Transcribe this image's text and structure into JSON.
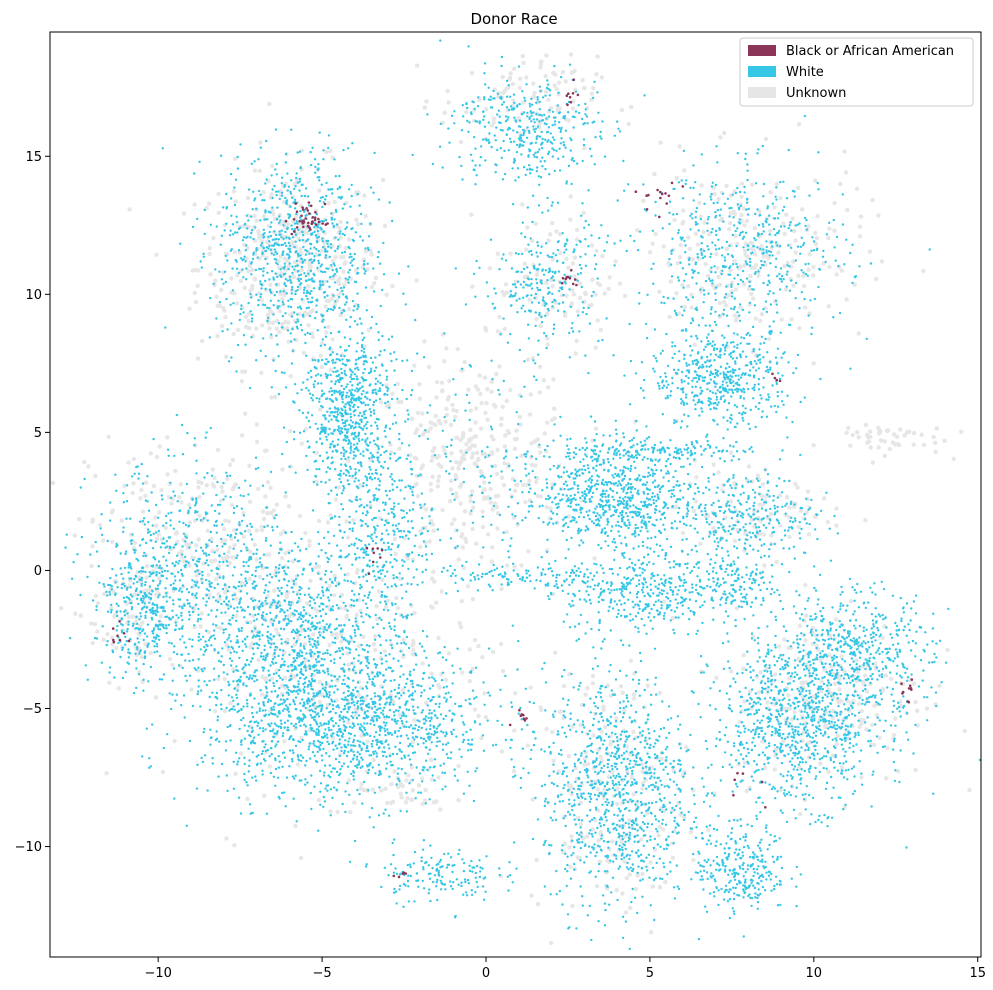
{
  "chart_data": {
    "type": "scatter",
    "title": "Donor Race",
    "xlabel": "",
    "ylabel": "",
    "xlim": [
      -13.3,
      15.1
    ],
    "ylim": [
      -14.0,
      19.5
    ],
    "xticks": [
      -10,
      -5,
      0,
      5,
      10,
      15
    ],
    "yticks": [
      -10,
      -5,
      0,
      5,
      10,
      15
    ],
    "xtick_labels": [
      "−10",
      "−5",
      "0",
      "5",
      "10",
      "15"
    ],
    "ytick_labels": [
      "−10",
      "−5",
      "0",
      "5",
      "10",
      "15"
    ],
    "grid": false,
    "legend_position": "top-right",
    "series": [
      {
        "name": "Unknown",
        "color": "#e6e6e6",
        "clusters": [
          {
            "center": [
              -6.0,
              11.0
            ],
            "sd": [
              1.4,
              1.8
            ],
            "n": 380
          },
          {
            "center": [
              -0.5,
              3.8
            ],
            "sd": [
              1.6,
              2.0
            ],
            "n": 320
          },
          {
            "center": [
              -8.5,
              1.0
            ],
            "sd": [
              1.8,
              2.0
            ],
            "n": 260
          },
          {
            "center": [
              -4.5,
              -3.5
            ],
            "sd": [
              2.5,
              2.2
            ],
            "n": 280
          },
          {
            "center": [
              8.0,
              11.5
            ],
            "sd": [
              1.8,
              1.6
            ],
            "n": 240
          },
          {
            "center": [
              1.0,
              17.0
            ],
            "sd": [
              1.2,
              0.8
            ],
            "n": 100
          },
          {
            "center": [
              2.0,
              10.5
            ],
            "sd": [
              1.0,
              1.3
            ],
            "n": 90
          },
          {
            "center": [
              10.5,
              -4.5
            ],
            "sd": [
              1.5,
              1.6
            ],
            "n": 220
          },
          {
            "center": [
              3.8,
              -8.0
            ],
            "sd": [
              1.2,
              2.3
            ],
            "n": 200
          },
          {
            "center": [
              8.2,
              2.2
            ],
            "sd": [
              1.2,
              0.9
            ],
            "n": 90
          },
          {
            "center": [
              12.0,
              4.8
            ],
            "sd": [
              1.0,
              0.3
            ],
            "n": 50
          },
          {
            "center": [
              -11.0,
              -1.5
            ],
            "sd": [
              0.6,
              1.2
            ],
            "n": 60
          },
          {
            "center": [
              -2.5,
              -8.0
            ],
            "sd": [
              0.7,
              0.4
            ],
            "n": 40
          }
        ]
      },
      {
        "name": "White",
        "color": "#36c6e6",
        "clusters": [
          {
            "center": [
              -4.2,
              -5.5
            ],
            "sd": [
              2.2,
              1.4
            ],
            "n": 1400
          },
          {
            "center": [
              -5.8,
              -2.2
            ],
            "sd": [
              1.6,
              1.6
            ],
            "n": 800
          },
          {
            "center": [
              -9.0,
              0.0
            ],
            "sd": [
              1.5,
              2.0
            ],
            "n": 600
          },
          {
            "center": [
              -10.5,
              -1.5
            ],
            "sd": [
              0.7,
              1.0
            ],
            "n": 250
          },
          {
            "center": [
              -4.2,
              5.8
            ],
            "sd": [
              0.7,
              1.6
            ],
            "n": 700
          },
          {
            "center": [
              -3.2,
              1.5
            ],
            "sd": [
              0.7,
              1.5
            ],
            "n": 300
          },
          {
            "center": [
              -5.8,
              11.5
            ],
            "sd": [
              1.2,
              1.8
            ],
            "n": 800
          },
          {
            "center": [
              4.0,
              -8.0
            ],
            "sd": [
              1.1,
              2.1
            ],
            "n": 950
          },
          {
            "center": [
              9.5,
              -5.5
            ],
            "sd": [
              1.3,
              1.5
            ],
            "n": 900
          },
          {
            "center": [
              11.2,
              -3.0
            ],
            "sd": [
              1.2,
              1.2
            ],
            "n": 500
          },
          {
            "center": [
              7.2,
              7.0
            ],
            "sd": [
              1.1,
              0.9
            ],
            "n": 500
          },
          {
            "center": [
              7.8,
              11.5
            ],
            "sd": [
              1.6,
              1.5
            ],
            "n": 500
          },
          {
            "center": [
              1.2,
              16.0
            ],
            "sd": [
              1.1,
              1.0
            ],
            "n": 380
          },
          {
            "center": [
              1.8,
              10.5
            ],
            "sd": [
              0.9,
              1.2
            ],
            "n": 250
          },
          {
            "center": [
              3.5,
              3.0
            ],
            "sd": [
              1.2,
              1.0
            ],
            "n": 450
          },
          {
            "center": [
              4.5,
              2.3
            ],
            "sd": [
              1.2,
              0.7
            ],
            "n": 300
          },
          {
            "center": [
              4.8,
              -0.8
            ],
            "sd": [
              1.2,
              0.8
            ],
            "n": 380
          },
          {
            "center": [
              8.0,
              2.0
            ],
            "sd": [
              1.0,
              0.8
            ],
            "n": 280
          },
          {
            "center": [
              7.5,
              -0.5
            ],
            "sd": [
              0.7,
              0.6
            ],
            "n": 150
          },
          {
            "center": [
              7.8,
              -10.8
            ],
            "sd": [
              0.7,
              0.8
            ],
            "n": 280
          },
          {
            "center": [
              -1.5,
              -11.0
            ],
            "sd": [
              0.9,
              0.5
            ],
            "n": 150
          },
          {
            "center": [
              5.5,
              4.3
            ],
            "sd": [
              1.5,
              0.2
            ],
            "n": 150
          },
          {
            "center": [
              1.3,
              -0.3
            ],
            "sd": [
              1.5,
              0.3
            ],
            "n": 120
          },
          {
            "center": [
              -0.5,
              4.0
            ],
            "sd": [
              1.5,
              1.8
            ],
            "n": 120
          }
        ]
      },
      {
        "name": "Black or African American",
        "color": "#8b3558",
        "clusters": [
          {
            "center": [
              -5.4,
              12.7
            ],
            "sd": [
              0.25,
              0.3
            ],
            "n": 40
          },
          {
            "center": [
              2.6,
              10.6
            ],
            "sd": [
              0.2,
              0.2
            ],
            "n": 10
          },
          {
            "center": [
              5.3,
              13.5
            ],
            "sd": [
              0.3,
              0.3
            ],
            "n": 14
          },
          {
            "center": [
              12.8,
              -4.3
            ],
            "sd": [
              0.2,
              0.2
            ],
            "n": 10
          },
          {
            "center": [
              1.1,
              -5.3
            ],
            "sd": [
              0.15,
              0.15
            ],
            "n": 8
          },
          {
            "center": [
              -11.3,
              -2.4
            ],
            "sd": [
              0.15,
              0.2
            ],
            "n": 8
          },
          {
            "center": [
              2.6,
              17.3
            ],
            "sd": [
              0.15,
              0.3
            ],
            "n": 8
          },
          {
            "center": [
              -3.5,
              0.6
            ],
            "sd": [
              0.3,
              0.3
            ],
            "n": 8
          },
          {
            "center": [
              8.0,
              -8.0
            ],
            "sd": [
              0.5,
              0.5
            ],
            "n": 6
          },
          {
            "center": [
              -2.6,
              -11.1
            ],
            "sd": [
              0.2,
              0.1
            ],
            "n": 5
          },
          {
            "center": [
              9.0,
              7.0
            ],
            "sd": [
              0.2,
              0.2
            ],
            "n": 4
          }
        ]
      }
    ]
  }
}
